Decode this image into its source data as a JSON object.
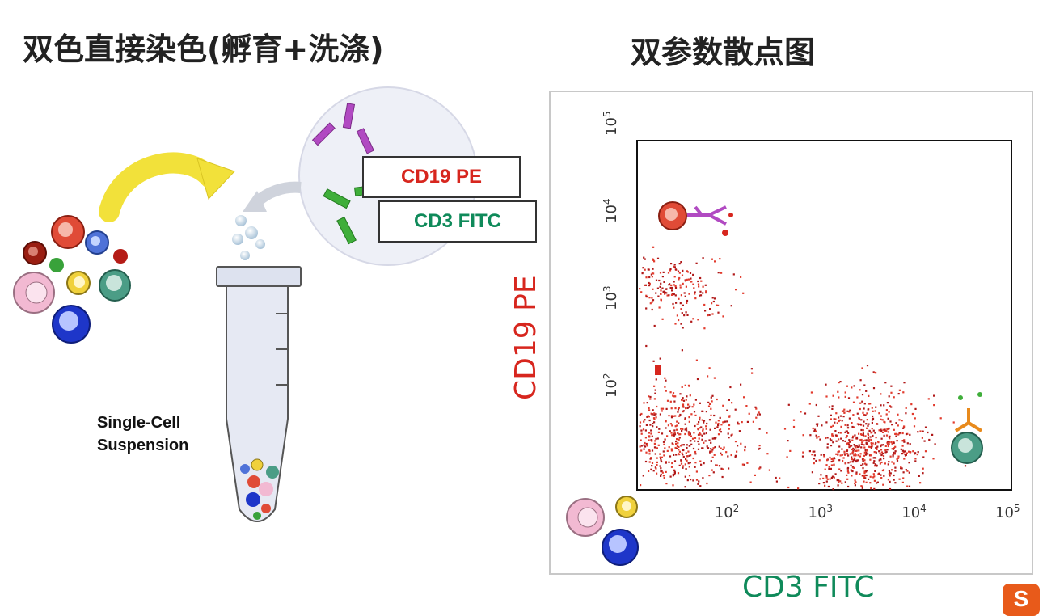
{
  "titles": {
    "left": "双色直接染色(孵育+洗涤)",
    "right": "双参数散点图"
  },
  "antibody_labels": {
    "cd19": "CD19 PE",
    "cd3": "CD3 FITC"
  },
  "suspension_label": {
    "line1": "Single-Cell",
    "line2": "Suspension"
  },
  "colors": {
    "pe_red": "#d7261e",
    "fitc_green": "#0f8a5a",
    "arrow_yellow": "#f2e13a",
    "antibody_purple": "#b14ac2",
    "antibody_green": "#3fae3a",
    "antibody_orange": "#e88a1c",
    "dot_red": "#b01818"
  },
  "chart_data": {
    "type": "scatter",
    "xlabel": "CD3 FITC",
    "ylabel": "CD19 PE",
    "x_scale": "log",
    "y_scale": "log",
    "xlim": [
      10,
      100000
    ],
    "ylim": [
      10,
      100000
    ],
    "x_ticks": [
      {
        "value": 100,
        "base": "10",
        "exp": "2"
      },
      {
        "value": 1000,
        "base": "10",
        "exp": "3"
      },
      {
        "value": 10000,
        "base": "10",
        "exp": "4"
      },
      {
        "value": 100000,
        "base": "10",
        "exp": "5"
      }
    ],
    "y_ticks": [
      {
        "value": 100,
        "base": "10",
        "exp": "2"
      },
      {
        "value": 1000,
        "base": "10",
        "exp": "3"
      },
      {
        "value": 10000,
        "base": "10",
        "exp": "4"
      },
      {
        "value": 100000,
        "base": "10",
        "exp": "5"
      }
    ],
    "populations": [
      {
        "x_center": 60,
        "y_center": 5000,
        "x_spread": 0.35,
        "y_spread": 0.22,
        "count": 260
      },
      {
        "x_center": 80,
        "y_center": 100,
        "x_spread": 0.45,
        "y_spread": 0.3,
        "count": 620
      },
      {
        "x_center": 9000,
        "y_center": 70,
        "x_spread": 0.3,
        "y_spread": 0.32,
        "count": 700
      }
    ]
  }
}
